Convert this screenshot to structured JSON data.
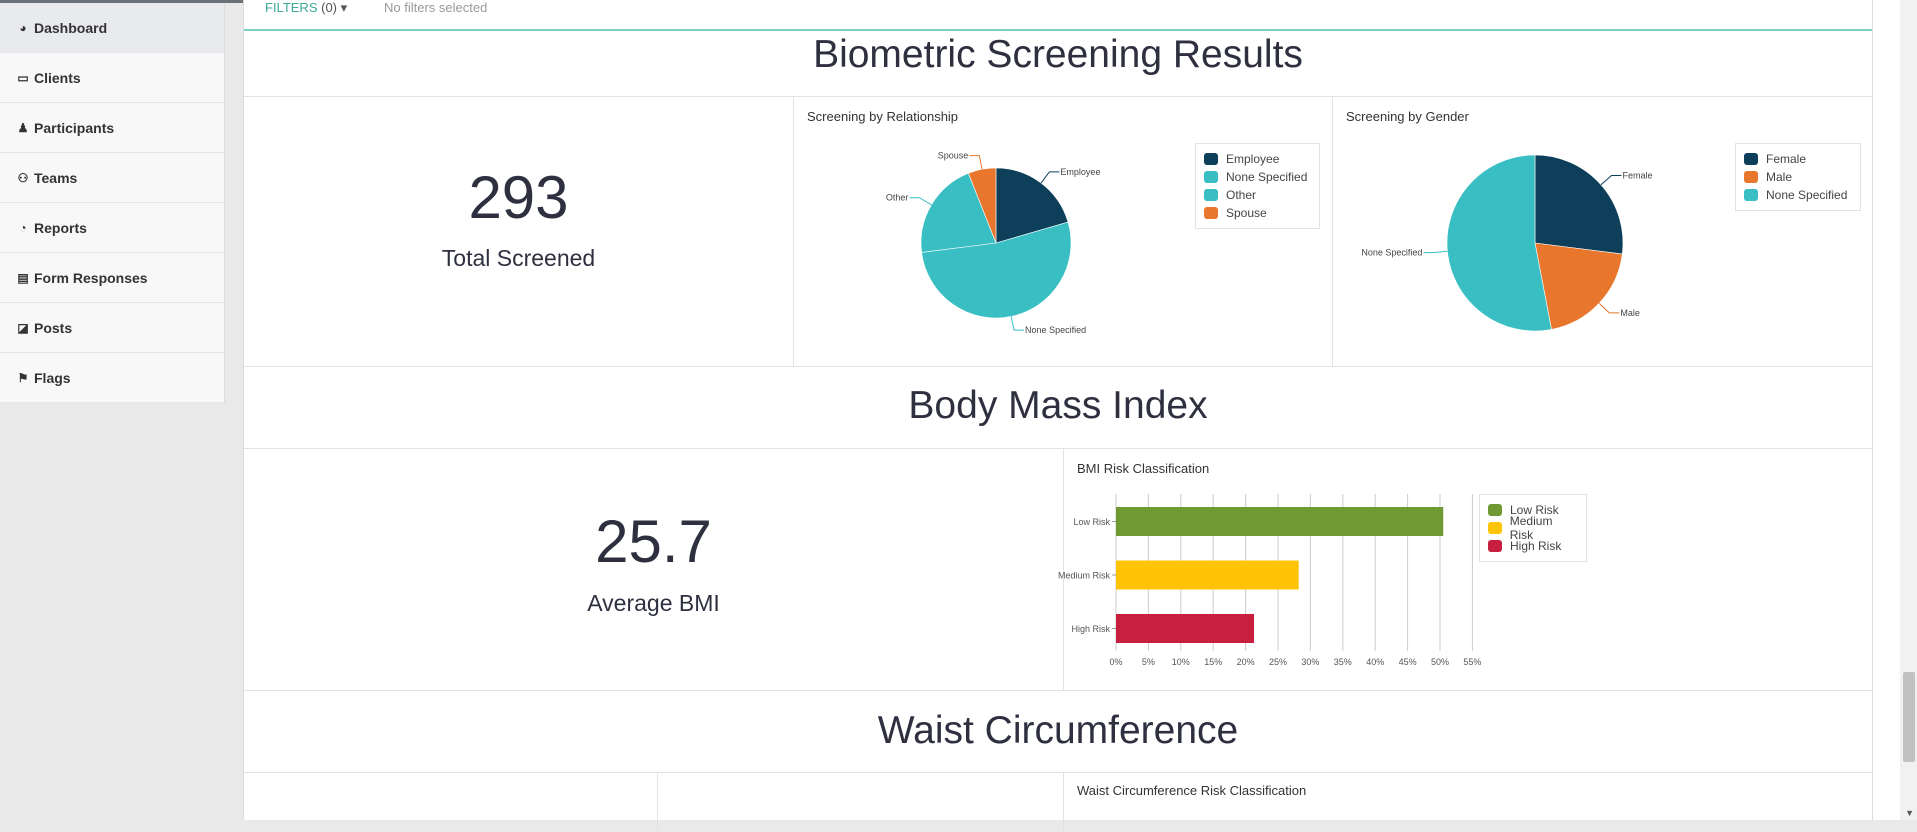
{
  "sidebar": {
    "items": [
      {
        "label": "Dashboard",
        "icon": "dashboard-icon",
        "glyph": "◕",
        "active": true
      },
      {
        "label": "Clients",
        "icon": "monitor-icon",
        "glyph": "▭"
      },
      {
        "label": "Participants",
        "icon": "user-icon",
        "glyph": "♟"
      },
      {
        "label": "Teams",
        "icon": "users-icon",
        "glyph": "⚇"
      },
      {
        "label": "Reports",
        "icon": "pie-chart-icon",
        "glyph": "◔"
      },
      {
        "label": "Form Responses",
        "icon": "file-icon",
        "glyph": "▤"
      },
      {
        "label": "Posts",
        "icon": "edit-icon",
        "glyph": "◪"
      },
      {
        "label": "Flags",
        "icon": "flag-icon",
        "glyph": "⚑"
      }
    ]
  },
  "filters": {
    "label": "FILTERS",
    "count": "(0)",
    "caret": "▾",
    "status": "No filters selected"
  },
  "sections": {
    "biometric": {
      "title": "Biometric Screening Results",
      "value": "293",
      "label": "Total Screened"
    },
    "bmi": {
      "title": "Body Mass Index",
      "value": "25.7",
      "label": "Average BMI"
    },
    "waist": {
      "title": "Waist Circumference"
    }
  },
  "chart_data": [
    {
      "type": "pie",
      "title": "Screening by Relationship",
      "labels": [
        "Employee",
        "None Specified",
        "Other",
        "Spouse"
      ],
      "values": [
        20.5,
        52.5,
        21,
        6
      ],
      "colors": [
        "#0d3f5a",
        "#39bfc3",
        "#39bfc3",
        "#e8762c"
      ]
    },
    {
      "type": "pie",
      "title": "Screening by Gender",
      "labels": [
        "Female",
        "Male",
        "None Specified"
      ],
      "values": [
        27,
        20,
        53
      ],
      "colors": [
        "#0d3f5a",
        "#e8762c",
        "#39bfc3"
      ]
    },
    {
      "type": "bar",
      "orientation": "horizontal",
      "title": "BMI Risk Classification",
      "categories": [
        "Low Risk",
        "Medium Risk",
        "High Risk"
      ],
      "values": [
        50.5,
        28.2,
        21.3
      ],
      "colors": [
        "#6f9a33",
        "#ffc408",
        "#c91f3f"
      ],
      "xticks": [
        "0%",
        "5%",
        "10%",
        "15%",
        "20%",
        "25%",
        "30%",
        "35%",
        "40%",
        "45%",
        "50%",
        "55%"
      ],
      "xlim": [
        0,
        55
      ]
    },
    {
      "type": "bar",
      "title": "Waist Circumference Risk Classification"
    }
  ]
}
